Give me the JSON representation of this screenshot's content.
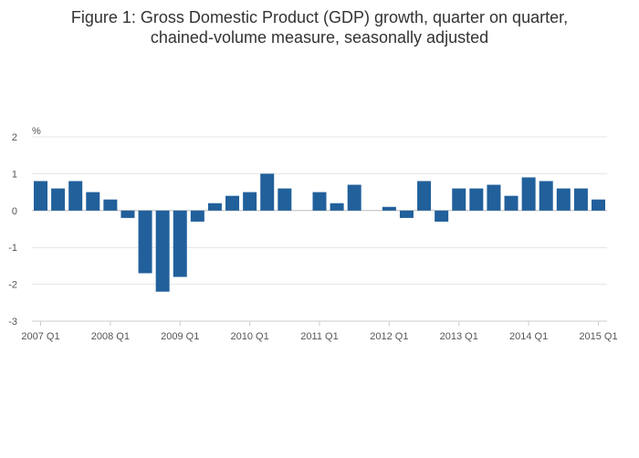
{
  "chart_data": {
    "type": "bar",
    "title_line1": "Figure 1: Gross Domestic Product (GDP) growth, quarter on quarter,",
    "title_line2": "chained-volume measure, seasonally adjusted",
    "ylabel": "%",
    "xlabel": "",
    "ylim": [
      -3,
      2
    ],
    "yticks": [
      2,
      1,
      0,
      -1,
      -2,
      -3
    ],
    "grid": true,
    "bar_color": "#21609B",
    "categories": [
      "2007 Q1",
      "2007 Q2",
      "2007 Q3",
      "2007 Q4",
      "2008 Q1",
      "2008 Q2",
      "2008 Q3",
      "2008 Q4",
      "2009 Q1",
      "2009 Q2",
      "2009 Q3",
      "2009 Q4",
      "2010 Q1",
      "2010 Q2",
      "2010 Q3",
      "2010 Q4",
      "2011 Q1",
      "2011 Q2",
      "2011 Q3",
      "2011 Q4",
      "2012 Q1",
      "2012 Q2",
      "2012 Q3",
      "2012 Q4",
      "2013 Q1",
      "2013 Q2",
      "2013 Q3",
      "2013 Q4",
      "2014 Q1",
      "2014 Q2",
      "2014 Q3",
      "2014 Q4",
      "2015 Q1"
    ],
    "values": [
      0.8,
      0.6,
      0.8,
      0.5,
      0.3,
      -0.2,
      -1.7,
      -2.2,
      -1.8,
      -0.3,
      0.2,
      0.4,
      0.5,
      1.0,
      0.6,
      0.0,
      0.5,
      0.2,
      0.7,
      0.0,
      0.1,
      -0.2,
      0.8,
      -0.3,
      0.6,
      0.6,
      0.7,
      0.4,
      0.9,
      0.8,
      0.6,
      0.6,
      0.3
    ],
    "xtick_labels": [
      "2007 Q1",
      "2008 Q1",
      "2009 Q1",
      "2010 Q1",
      "2011 Q1",
      "2012 Q1",
      "2013 Q1",
      "2014 Q1",
      "2015 Q1"
    ]
  }
}
